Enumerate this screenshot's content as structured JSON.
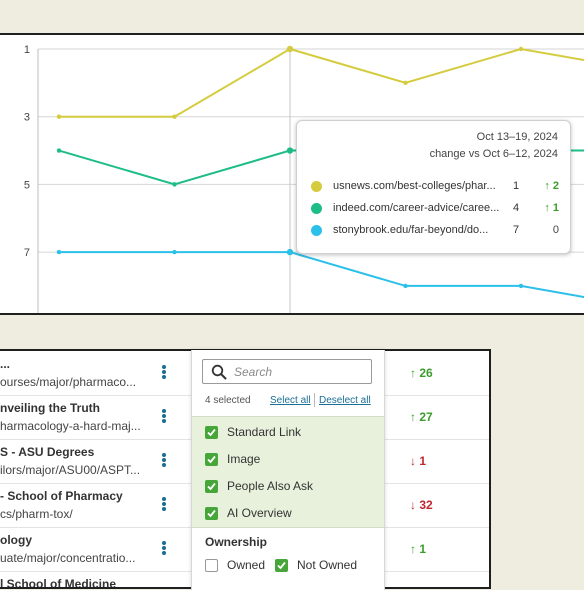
{
  "chart": {
    "y_ticks": [
      "1",
      "3",
      "5",
      "7"
    ],
    "tooltip": {
      "date": "Oct 13–19, 2024",
      "change_label": "change vs Oct 6–12, 2024",
      "rows": [
        {
          "url": "usnews.com/best-colleges/phar...",
          "rank": "1",
          "arrow": "↑",
          "change": "2",
          "dir": "up",
          "color": "#d4cc3e"
        },
        {
          "url": "indeed.com/career-advice/caree...",
          "rank": "4",
          "arrow": "↑",
          "change": "1",
          "dir": "up",
          "color": "#1dbd85"
        },
        {
          "url": "stonybrook.edu/far-beyond/do...",
          "rank": "7",
          "arrow": "",
          "change": "0",
          "dir": "flat",
          "color": "#2bc0ea"
        }
      ]
    }
  },
  "chart_data": {
    "type": "line",
    "x": [
      0,
      1,
      2,
      3,
      4,
      5
    ],
    "ylim": [
      1,
      8.8
    ],
    "y_inverted": true,
    "y_ticks": [
      1,
      3,
      5,
      7
    ],
    "grid": true,
    "series": [
      {
        "values": [
          3,
          3,
          1,
          2,
          1,
          1.6
        ],
        "color": "#d4cc3e"
      },
      {
        "values": [
          4,
          5,
          4,
          4,
          4,
          4
        ],
        "color": "#1dbd85"
      },
      {
        "values": [
          7,
          7,
          7,
          8,
          8,
          8.6
        ],
        "color": "#2bc0ea"
      }
    ]
  },
  "table": {
    "rows": [
      {
        "title": "...",
        "url": "ourses/major/pharmaco...",
        "arrow": "↑",
        "change": "26",
        "dir": "up"
      },
      {
        "title": "nveiling the Truth",
        "url": "harmacology-a-hard-maj...",
        "arrow": "↑",
        "change": "27",
        "dir": "up"
      },
      {
        "title": "S - ASU Degrees",
        "url": "ilors/major/ASU00/ASPT...",
        "arrow": "↓",
        "change": "1",
        "dir": "down"
      },
      {
        "title": "- School of Pharmacy",
        "url": "cs/pharm-tox/",
        "arrow": "↓",
        "change": "32",
        "dir": "down"
      },
      {
        "title": "ology",
        "url": "uate/major/concentratio...",
        "arrow": "↑",
        "change": "1",
        "dir": "up"
      },
      {
        "title": "l School of Medicine",
        "url": "",
        "arrow": "",
        "change": "",
        "dir": "up"
      }
    ]
  },
  "filter": {
    "search_placeholder": "Search",
    "selected_count": "4 selected",
    "select_all": "Select all",
    "deselect_all": "Deselect all",
    "options": [
      {
        "label": "Standard Link",
        "checked": true
      },
      {
        "label": "Image",
        "checked": true
      },
      {
        "label": "People Also Ask",
        "checked": true
      },
      {
        "label": "AI Overview",
        "checked": true
      }
    ],
    "ownership_heading": "Ownership",
    "ownership_options": [
      {
        "label": "Owned",
        "checked": false
      },
      {
        "label": "Not Owned",
        "checked": true
      }
    ]
  }
}
